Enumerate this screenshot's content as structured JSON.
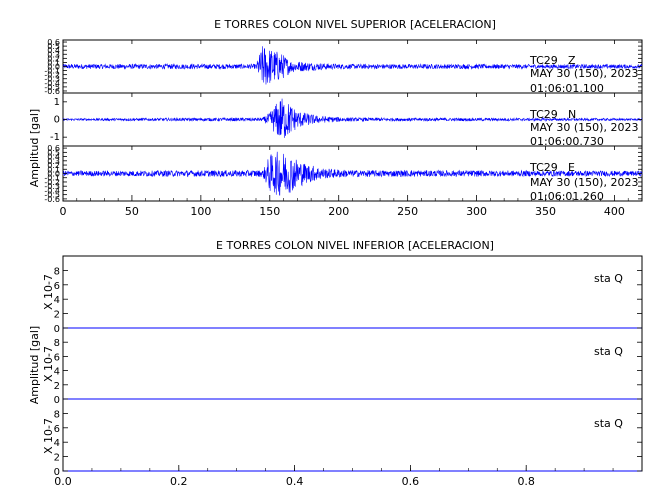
{
  "chart_data": [
    {
      "type": "line",
      "title": "E TORRES COLON NIVEL SUPERIOR [ACELERACION]",
      "ylabel": "Amplitud [gal]",
      "xlim": [
        0,
        420
      ],
      "x_ticks": [
        "0",
        "50",
        "100",
        "150",
        "200",
        "250",
        "300",
        "350",
        "400"
      ],
      "color": "#0000ff",
      "channels": [
        {
          "station": "TC29",
          "component": "Z",
          "date": "MAY 30 (150), 2023",
          "time": "01:06:01.100",
          "ylim": [
            -0.65,
            0.65
          ],
          "y_ticks": [
            "0.6",
            "0.5",
            "0.4",
            "0.3",
            "0.2",
            "0.1",
            "0.0",
            "-0.1",
            "-0.2",
            "-0.3",
            "-0.4",
            "-0.5",
            "-0.6"
          ],
          "envelope": [
            [
              0,
              0.06
            ],
            [
              140,
              0.06
            ],
            [
              145,
              0.55
            ],
            [
              150,
              0.45
            ],
            [
              158,
              0.35
            ],
            [
              165,
              0.15
            ],
            [
              180,
              0.1
            ],
            [
              200,
              0.06
            ],
            [
              420,
              0.05
            ]
          ]
        },
        {
          "station": "TC29",
          "component": "N",
          "date": "MAY 30 (150), 2023",
          "time": "01:06:00.730",
          "ylim": [
            -1.5,
            1.5
          ],
          "y_ticks": [
            "1",
            "0",
            "-1"
          ],
          "envelope": [
            [
              0,
              0.06
            ],
            [
              145,
              0.1
            ],
            [
              150,
              0.4
            ],
            [
              158,
              1.3
            ],
            [
              162,
              1.1
            ],
            [
              170,
              0.5
            ],
            [
              185,
              0.2
            ],
            [
              210,
              0.1
            ],
            [
              420,
              0.06
            ]
          ]
        },
        {
          "station": "TC29",
          "component": "E",
          "date": "MAY 30 (150), 2023",
          "time": "01:06:01.260",
          "ylim": [
            -0.65,
            0.65
          ],
          "y_ticks": [
            "0.6",
            "0.5",
            "0.4",
            "0.3",
            "0.2",
            "0.1",
            "0.0",
            "-0.1",
            "-0.2",
            "-0.3",
            "-0.4",
            "-0.5",
            "-0.6"
          ],
          "envelope": [
            [
              0,
              0.06
            ],
            [
              145,
              0.08
            ],
            [
              150,
              0.45
            ],
            [
              158,
              0.55
            ],
            [
              165,
              0.45
            ],
            [
              175,
              0.25
            ],
            [
              190,
              0.12
            ],
            [
              210,
              0.08
            ],
            [
              420,
              0.06
            ]
          ]
        }
      ]
    },
    {
      "type": "line",
      "title": "E TORRES COLON NIVEL INFERIOR [ACELERACION]",
      "ylabel": "Amplitud [gal]",
      "xlim": [
        0,
        1.0
      ],
      "x_ticks": [
        "0.0",
        "0.2",
        "0.4",
        "0.6",
        "0.8"
      ],
      "color": "#0000ff",
      "channels": [
        {
          "label": "sta Q",
          "scale_label": "X 10-7",
          "ylim": [
            0,
            10
          ],
          "y_ticks": [
            "8",
            "6",
            "4",
            "2",
            "0"
          ],
          "value": 0
        },
        {
          "label": "sta Q",
          "scale_label": "X 10-7",
          "ylim": [
            0,
            10
          ],
          "y_ticks": [
            "8",
            "6",
            "4",
            "2",
            "0"
          ],
          "value": 0
        },
        {
          "label": "sta Q",
          "scale_label": "X 10-7",
          "ylim": [
            0,
            10
          ],
          "y_ticks": [
            "8",
            "6",
            "4",
            "2",
            "0"
          ],
          "value": 0
        }
      ]
    }
  ]
}
